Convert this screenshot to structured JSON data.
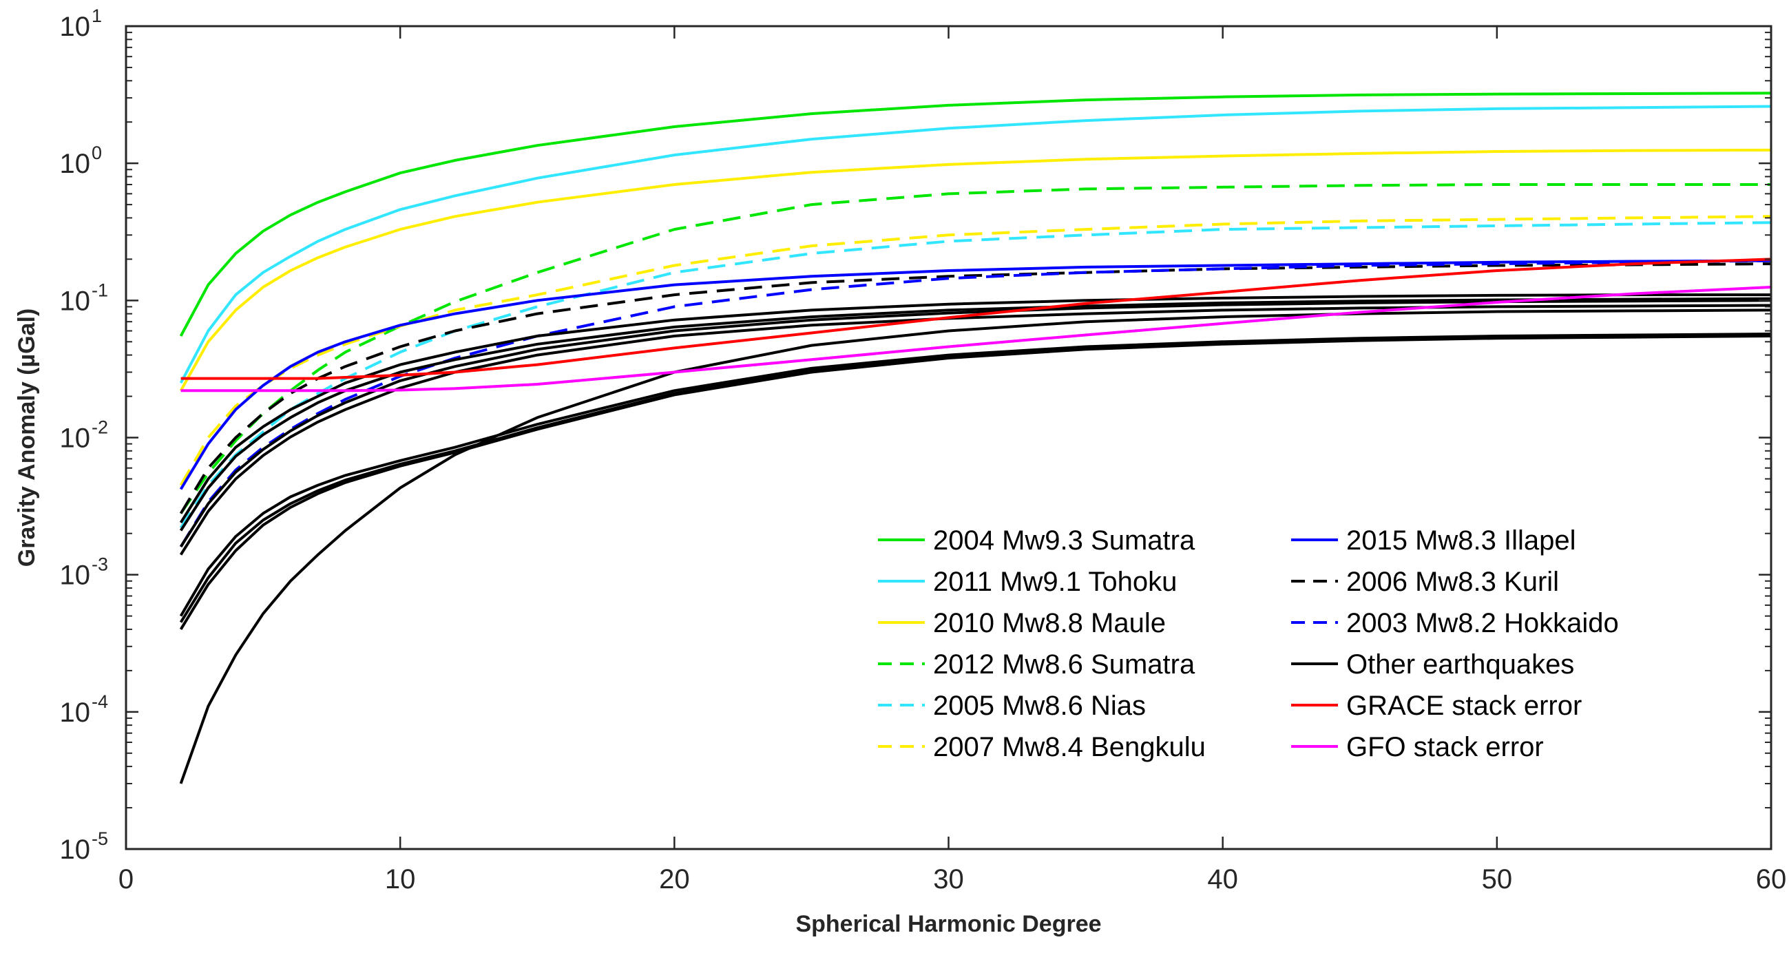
{
  "chart_data": {
    "type": "line",
    "title": "",
    "xlabel": "Spherical Harmonic Degree",
    "ylabel": "Gravity Anomaly (µGal)",
    "xlim": [
      0,
      60
    ],
    "ylim": [
      1e-05,
      10
    ],
    "yscale": "log",
    "xticks": [
      0,
      10,
      20,
      30,
      40,
      50,
      60
    ],
    "xtick_labels": [
      "0",
      "10",
      "20",
      "30",
      "40",
      "50",
      "60"
    ],
    "yticks": [
      1e-05,
      0.0001,
      0.001,
      0.01,
      0.1,
      1,
      10
    ],
    "ytick_labels": [
      {
        "base": "10",
        "exp": "-5"
      },
      {
        "base": "10",
        "exp": "-4"
      },
      {
        "base": "10",
        "exp": "-3"
      },
      {
        "base": "10",
        "exp": "-2"
      },
      {
        "base": "10",
        "exp": "-1"
      },
      {
        "base": "10",
        "exp": "0"
      },
      {
        "base": "10",
        "exp": "1"
      }
    ],
    "grid": false,
    "legend_position": "lower-right",
    "legend_columns": 2,
    "x": [
      2,
      3,
      4,
      5,
      6,
      7,
      8,
      10,
      12,
      15,
      20,
      25,
      30,
      35,
      40,
      45,
      50,
      55,
      60
    ],
    "series": [
      {
        "name": "2004 Mw9.3 Sumatra",
        "color": "#00e600",
        "dash": "solid",
        "in_legend": true,
        "legend_col": 0,
        "legend_row": 0,
        "values": [
          0.055,
          0.13,
          0.22,
          0.32,
          0.42,
          0.52,
          0.62,
          0.85,
          1.05,
          1.35,
          1.85,
          2.3,
          2.65,
          2.9,
          3.05,
          3.15,
          3.2,
          3.22,
          3.25
        ]
      },
      {
        "name": "2011 Mw9.1 Tohoku",
        "color": "#33e6ff",
        "dash": "solid",
        "in_legend": true,
        "legend_col": 0,
        "legend_row": 1,
        "values": [
          0.025,
          0.06,
          0.11,
          0.16,
          0.21,
          0.27,
          0.33,
          0.46,
          0.58,
          0.78,
          1.15,
          1.5,
          1.8,
          2.05,
          2.25,
          2.4,
          2.5,
          2.55,
          2.6
        ]
      },
      {
        "name": "2010 Mw8.8 Maule",
        "color": "#ffee00",
        "dash": "solid",
        "in_legend": true,
        "legend_col": 0,
        "legend_row": 2,
        "values": [
          0.022,
          0.05,
          0.085,
          0.125,
          0.165,
          0.205,
          0.245,
          0.33,
          0.41,
          0.52,
          0.7,
          0.86,
          0.98,
          1.07,
          1.13,
          1.18,
          1.22,
          1.24,
          1.25
        ]
      },
      {
        "name": "2012 Mw8.6 Sumatra",
        "color": "#00e600",
        "dash": "dashed",
        "in_legend": true,
        "legend_col": 0,
        "legend_row": 3,
        "values": [
          0.0028,
          0.0055,
          0.0095,
          0.015,
          0.022,
          0.031,
          0.042,
          0.065,
          0.098,
          0.16,
          0.33,
          0.5,
          0.6,
          0.65,
          0.67,
          0.69,
          0.7,
          0.7,
          0.7
        ]
      },
      {
        "name": "2005 Mw8.6 Nias",
        "color": "#33e6ff",
        "dash": "dashed",
        "in_legend": true,
        "legend_col": 0,
        "legend_row": 4,
        "values": [
          0.0022,
          0.0045,
          0.0075,
          0.011,
          0.016,
          0.021,
          0.027,
          0.042,
          0.06,
          0.09,
          0.16,
          0.22,
          0.27,
          0.3,
          0.33,
          0.34,
          0.35,
          0.36,
          0.37
        ]
      },
      {
        "name": "2007 Mw8.4 Bengkulu",
        "color": "#ffee00",
        "dash": "dashed",
        "in_legend": true,
        "legend_col": 0,
        "legend_row": 5,
        "values": [
          0.0045,
          0.01,
          0.017,
          0.024,
          0.032,
          0.04,
          0.048,
          0.065,
          0.085,
          0.11,
          0.18,
          0.25,
          0.3,
          0.33,
          0.36,
          0.38,
          0.39,
          0.4,
          0.41
        ]
      },
      {
        "name": "2015 Mw8.3 Illapel",
        "color": "#0000ff",
        "dash": "solid",
        "in_legend": true,
        "legend_col": 1,
        "legend_row": 0,
        "values": [
          0.0042,
          0.009,
          0.016,
          0.024,
          0.033,
          0.042,
          0.05,
          0.066,
          0.08,
          0.1,
          0.13,
          0.15,
          0.165,
          0.175,
          0.18,
          0.185,
          0.19,
          0.193,
          0.195
        ]
      },
      {
        "name": "2006 Mw8.3 Kuril",
        "color": "#000000",
        "dash": "dashed",
        "in_legend": true,
        "legend_col": 1,
        "legend_row": 1,
        "values": [
          0.0028,
          0.006,
          0.01,
          0.015,
          0.021,
          0.027,
          0.033,
          0.046,
          0.06,
          0.08,
          0.11,
          0.135,
          0.15,
          0.16,
          0.17,
          0.175,
          0.18,
          0.182,
          0.185
        ]
      },
      {
        "name": "2003 Mw8.2 Hokkaido",
        "color": "#0000ff",
        "dash": "dashed",
        "in_legend": true,
        "legend_col": 1,
        "legend_row": 2,
        "values": [
          0.0016,
          0.0034,
          0.0058,
          0.0085,
          0.0115,
          0.015,
          0.019,
          0.028,
          0.038,
          0.055,
          0.09,
          0.12,
          0.145,
          0.16,
          0.17,
          0.18,
          0.185,
          0.19,
          0.195
        ]
      },
      {
        "name": "Other earthquakes",
        "color": "#000000",
        "dash": "solid",
        "in_legend": true,
        "legend_col": 1,
        "legend_row": 3,
        "values": [
          0.0024,
          0.005,
          0.0085,
          0.012,
          0.016,
          0.02,
          0.025,
          0.034,
          0.042,
          0.055,
          0.072,
          0.085,
          0.094,
          0.1,
          0.104,
          0.107,
          0.109,
          0.11,
          0.11
        ]
      },
      {
        "name": "Other earthquakes",
        "color": "#000000",
        "dash": "solid",
        "in_legend": false,
        "values": [
          0.0021,
          0.0043,
          0.0073,
          0.0105,
          0.014,
          0.018,
          0.022,
          0.03,
          0.037,
          0.048,
          0.064,
          0.076,
          0.085,
          0.091,
          0.096,
          0.099,
          0.101,
          0.102,
          0.103
        ]
      },
      {
        "name": "Other earthquakes",
        "color": "#000000",
        "dash": "solid",
        "in_legend": false,
        "values": [
          0.0016,
          0.0033,
          0.0056,
          0.0082,
          0.0112,
          0.0145,
          0.018,
          0.026,
          0.033,
          0.044,
          0.06,
          0.072,
          0.081,
          0.088,
          0.093,
          0.096,
          0.098,
          0.099,
          0.1
        ]
      },
      {
        "name": "Other earthquakes",
        "color": "#000000",
        "dash": "solid",
        "in_legend": false,
        "values": [
          0.0014,
          0.0029,
          0.005,
          0.0074,
          0.0101,
          0.013,
          0.016,
          0.023,
          0.03,
          0.04,
          0.055,
          0.066,
          0.074,
          0.08,
          0.085,
          0.088,
          0.09,
          0.091,
          0.092
        ]
      },
      {
        "name": "Other earthquakes",
        "color": "#000000",
        "dash": "solid",
        "in_legend": false,
        "values": [
          0.0005,
          0.0011,
          0.0019,
          0.0028,
          0.0037,
          0.0045,
          0.0053,
          0.0068,
          0.0085,
          0.0125,
          0.022,
          0.032,
          0.04,
          0.046,
          0.05,
          0.053,
          0.055,
          0.056,
          0.057
        ]
      },
      {
        "name": "Other earthquakes",
        "color": "#000000",
        "dash": "solid",
        "in_legend": false,
        "values": [
          0.00045,
          0.00095,
          0.0017,
          0.0025,
          0.0033,
          0.0041,
          0.0049,
          0.0064,
          0.008,
          0.0118,
          0.021,
          0.031,
          0.039,
          0.045,
          0.049,
          0.052,
          0.054,
          0.055,
          0.056
        ]
      },
      {
        "name": "Other earthquakes",
        "color": "#000000",
        "dash": "solid",
        "in_legend": false,
        "values": [
          0.0004,
          0.00085,
          0.0015,
          0.0023,
          0.0031,
          0.0039,
          0.0047,
          0.0062,
          0.0078,
          0.0115,
          0.0205,
          0.03,
          0.038,
          0.044,
          0.048,
          0.051,
          0.053,
          0.054,
          0.055
        ]
      },
      {
        "name": "Other earthquakes",
        "color": "#000000",
        "dash": "solid",
        "in_legend": false,
        "values": [
          3e-05,
          0.00011,
          0.00026,
          0.00052,
          0.0009,
          0.0014,
          0.0021,
          0.0043,
          0.0075,
          0.014,
          0.03,
          0.047,
          0.06,
          0.07,
          0.076,
          0.08,
          0.083,
          0.084,
          0.085
        ]
      },
      {
        "name": "GRACE stack error",
        "color": "#ff0000",
        "dash": "solid",
        "in_legend": true,
        "legend_col": 1,
        "legend_row": 4,
        "values": [
          0.027,
          0.027,
          0.027,
          0.027,
          0.027,
          0.027,
          0.0275,
          0.0285,
          0.03,
          0.034,
          0.045,
          0.058,
          0.075,
          0.095,
          0.115,
          0.14,
          0.165,
          0.185,
          0.2
        ]
      },
      {
        "name": "GFO stack error",
        "color": "#ff00ff",
        "dash": "solid",
        "in_legend": true,
        "legend_col": 1,
        "legend_row": 5,
        "values": [
          0.022,
          0.022,
          0.022,
          0.022,
          0.022,
          0.022,
          0.022,
          0.0222,
          0.0228,
          0.0245,
          0.03,
          0.037,
          0.046,
          0.056,
          0.068,
          0.082,
          0.097,
          0.112,
          0.125
        ]
      }
    ]
  }
}
